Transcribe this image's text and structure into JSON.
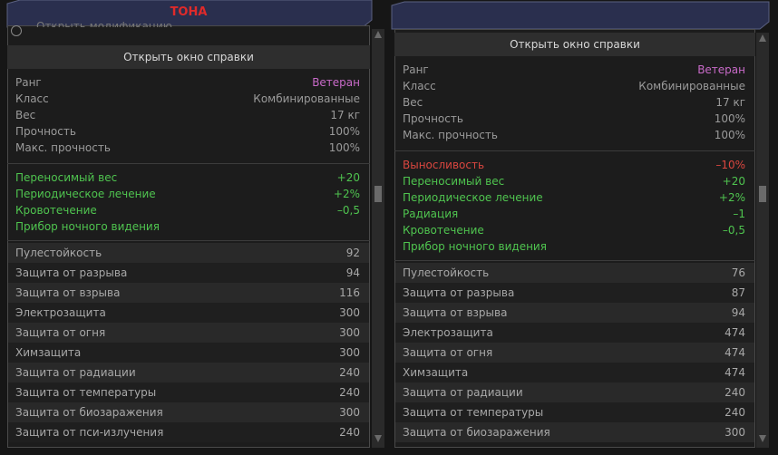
{
  "panels": [
    {
      "title": "ТОНА",
      "top_option": "Открыть модификацию",
      "button": "Открыть окно справки",
      "info": [
        {
          "label": "Ранг",
          "value": "Ветеран"
        },
        {
          "label": "Класс",
          "value": "Комбинированные"
        },
        {
          "label": "Вес",
          "value": "17 кг"
        },
        {
          "label": "Прочность",
          "value": "100%"
        },
        {
          "label": "Макс. прочность",
          "value": "100%"
        }
      ],
      "effects": [
        {
          "label": "Переносимый вес",
          "value": "+20",
          "color": "#4fc44f"
        },
        {
          "label": "Периодическое лечение",
          "value": "+2%",
          "color": "#4fc44f"
        },
        {
          "label": "Кровотечение",
          "value": "–0,5",
          "color": "#4fc44f"
        },
        {
          "label": "Прибор ночного видения",
          "color": "#4fc44f"
        }
      ],
      "stats": [
        {
          "label": "Пулестойкость",
          "value": "92"
        },
        {
          "label": "Защита от разрыва",
          "value": "94"
        },
        {
          "label": "Защита от взрыва",
          "value": "116"
        },
        {
          "label": "Электрозащита",
          "value": "300"
        },
        {
          "label": "Защита от огня",
          "value": "300"
        },
        {
          "label": "Химзащита",
          "value": "300"
        },
        {
          "label": "Защита от радиации",
          "value": "240"
        },
        {
          "label": "Защита от температуры",
          "value": "240"
        },
        {
          "label": "Защита от биозаражения",
          "value": "300"
        },
        {
          "label": "Защита от пси-излучения",
          "value": "240"
        }
      ]
    },
    {
      "button": "Открыть окно справки",
      "info": [
        {
          "label": "Ранг",
          "value": "Ветеран"
        },
        {
          "label": "Класс",
          "value": "Комбинированные"
        },
        {
          "label": "Вес",
          "value": "17 кг"
        },
        {
          "label": "Прочность",
          "value": "100%"
        },
        {
          "label": "Макс. прочность",
          "value": "100%"
        }
      ],
      "effects": [
        {
          "label": "Выносливость",
          "value": "–10%",
          "color": "#d9463f"
        },
        {
          "label": "Переносимый вес",
          "value": "+20",
          "color": "#4fc44f"
        },
        {
          "label": "Периодическое лечение",
          "value": "+2%",
          "color": "#4fc44f"
        },
        {
          "label": "Радиация",
          "value": "–1",
          "color": "#4fc44f"
        },
        {
          "label": "Кровотечение",
          "value": "–0,5",
          "color": "#4fc44f"
        },
        {
          "label": "Прибор ночного видения",
          "color": "#4fc44f"
        }
      ],
      "stats": [
        {
          "label": "Пулестойкость",
          "value": "76"
        },
        {
          "label": "Защита от разрыва",
          "value": "87"
        },
        {
          "label": "Защита от взрыва",
          "value": "94"
        },
        {
          "label": "Электрозащита",
          "value": "474"
        },
        {
          "label": "Защита от огня",
          "value": "474"
        },
        {
          "label": "Химзащита",
          "value": "474"
        },
        {
          "label": "Защита от радиации",
          "value": "240"
        },
        {
          "label": "Защита от температуры",
          "value": "240"
        },
        {
          "label": "Защита от биозаражения",
          "value": "300"
        }
      ]
    }
  ]
}
